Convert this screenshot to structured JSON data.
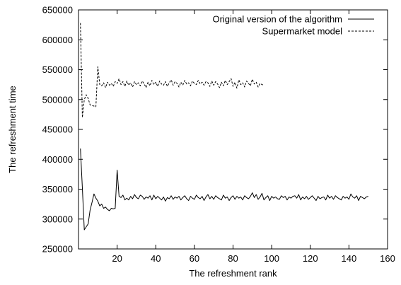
{
  "chart_data": {
    "type": "line",
    "title": "",
    "xlabel": "The refreshment rank",
    "ylabel": "The refreshment time",
    "xlim": [
      0,
      160
    ],
    "ylim": [
      250000,
      650000
    ],
    "xticks": [
      20,
      40,
      60,
      80,
      100,
      120,
      140,
      160
    ],
    "yticks": [
      250000,
      300000,
      350000,
      400000,
      450000,
      500000,
      550000,
      600000,
      650000
    ],
    "grid": false,
    "legend_position": "top-right",
    "series": [
      {
        "name": "Original version of the algorithm",
        "style": "solid",
        "x": [
          1,
          2,
          3,
          4,
          5,
          6,
          7,
          8,
          9,
          10,
          11,
          12,
          13,
          14,
          15,
          16,
          17,
          18,
          19,
          20,
          21,
          22,
          23,
          24,
          25,
          26,
          27,
          28,
          29,
          30,
          31,
          32,
          33,
          34,
          35,
          36,
          37,
          38,
          39,
          40,
          41,
          42,
          43,
          44,
          45,
          46,
          47,
          48,
          49,
          50,
          51,
          52,
          53,
          54,
          55,
          56,
          57,
          58,
          59,
          60,
          61,
          62,
          63,
          64,
          65,
          66,
          67,
          68,
          69,
          70,
          71,
          72,
          73,
          74,
          75,
          76,
          77,
          78,
          79,
          80,
          81,
          82,
          83,
          84,
          85,
          86,
          87,
          88,
          89,
          90,
          91,
          92,
          93,
          94,
          95,
          96,
          97,
          98,
          99,
          100,
          101,
          102,
          103,
          104,
          105,
          106,
          107,
          108,
          109,
          110,
          111,
          112,
          113,
          114,
          115,
          116,
          117,
          118,
          119,
          120,
          121,
          122,
          123,
          124,
          125,
          126,
          127,
          128,
          129,
          130,
          131,
          132,
          133,
          134,
          135,
          136,
          137,
          138,
          139,
          140,
          141,
          142,
          143,
          144,
          145,
          146,
          147,
          148,
          149,
          150
        ],
        "y": [
          418000,
          352000,
          282000,
          287000,
          292000,
          315000,
          328000,
          342000,
          335000,
          330000,
          322000,
          325000,
          318000,
          320000,
          316000,
          314000,
          318000,
          317000,
          318000,
          382000,
          338000,
          336000,
          340000,
          332000,
          335000,
          332000,
          338000,
          334000,
          341000,
          336000,
          334000,
          340000,
          338000,
          333000,
          337000,
          335000,
          339000,
          332000,
          340000,
          334000,
          338000,
          335000,
          332000,
          337000,
          330000,
          336000,
          334000,
          339000,
          333000,
          337000,
          335000,
          338000,
          332000,
          336000,
          339000,
          334000,
          331000,
          338000,
          335000,
          333000,
          340000,
          336000,
          334000,
          338000,
          331000,
          337000,
          341000,
          334000,
          338000,
          333000,
          339000,
          336000,
          334000,
          332000,
          340000,
          335000,
          337000,
          331000,
          336000,
          339000,
          333000,
          338000,
          335000,
          337000,
          332000,
          339000,
          336000,
          334000,
          338000,
          344000,
          336000,
          341000,
          333000,
          337000,
          343000,
          332000,
          336000,
          339000,
          331000,
          338000,
          335000,
          337000,
          334000,
          333000,
          339000,
          336000,
          338000,
          332000,
          337000,
          335000,
          338000,
          339000,
          335000,
          341000,
          332000,
          337000,
          334000,
          338000,
          333000,
          336000,
          339000,
          335000,
          331000,
          338000,
          334000,
          336000,
          337000,
          332000,
          340000,
          335000,
          338000,
          333000,
          339000,
          336000,
          334000,
          332000,
          338000,
          335000,
          337000,
          333000,
          342000,
          337000,
          335000,
          339000,
          331000,
          338000,
          336000,
          334000,
          337000,
          338000
        ],
        "color": "#000000"
      },
      {
        "name": "Supermarket model",
        "style": "dashed",
        "x": [
          1,
          2,
          3,
          4,
          5,
          6,
          7,
          8,
          9,
          10,
          11,
          12,
          13,
          14,
          15,
          16,
          17,
          18,
          19,
          20,
          21,
          22,
          23,
          24,
          25,
          26,
          27,
          28,
          29,
          30,
          31,
          32,
          33,
          34,
          35,
          36,
          37,
          38,
          39,
          40,
          41,
          42,
          43,
          44,
          45,
          46,
          47,
          48,
          49,
          50,
          51,
          52,
          53,
          54,
          55,
          56,
          57,
          58,
          59,
          60,
          61,
          62,
          63,
          64,
          65,
          66,
          67,
          68,
          69,
          70,
          71,
          72,
          73,
          74,
          75,
          76,
          77,
          78,
          79,
          80,
          81,
          82,
          83,
          84,
          85,
          86,
          87,
          88,
          89,
          90,
          91,
          92,
          93,
          94,
          95,
          96
        ],
        "y": [
          628000,
          470000,
          500000,
          508000,
          502000,
          491000,
          490000,
          489000,
          488000,
          555000,
          525000,
          523000,
          528000,
          520000,
          529000,
          524000,
          527000,
          522000,
          530000,
          527000,
          535000,
          525000,
          530000,
          522000,
          531000,
          524000,
          528000,
          521000,
          530000,
          525000,
          528000,
          523000,
          531000,
          526000,
          520000,
          529000,
          523000,
          532000,
          525000,
          529000,
          522000,
          531000,
          526000,
          524000,
          530000,
          522000,
          528000,
          533000,
          524000,
          530000,
          527000,
          521000,
          529000,
          524000,
          532000,
          526000,
          528000,
          523000,
          531000,
          527000,
          525000,
          532000,
          526000,
          529000,
          524000,
          530000,
          528000,
          522000,
          531000,
          524000,
          530000,
          526000,
          520000,
          529000,
          523000,
          532000,
          525000,
          530000,
          535000,
          522000,
          529000,
          519000,
          533000,
          525000,
          528000,
          521000,
          531000,
          527000,
          523000,
          534000,
          526000,
          529000,
          521000,
          527000,
          525000,
          524000
        ],
        "color": "#000000"
      }
    ]
  }
}
